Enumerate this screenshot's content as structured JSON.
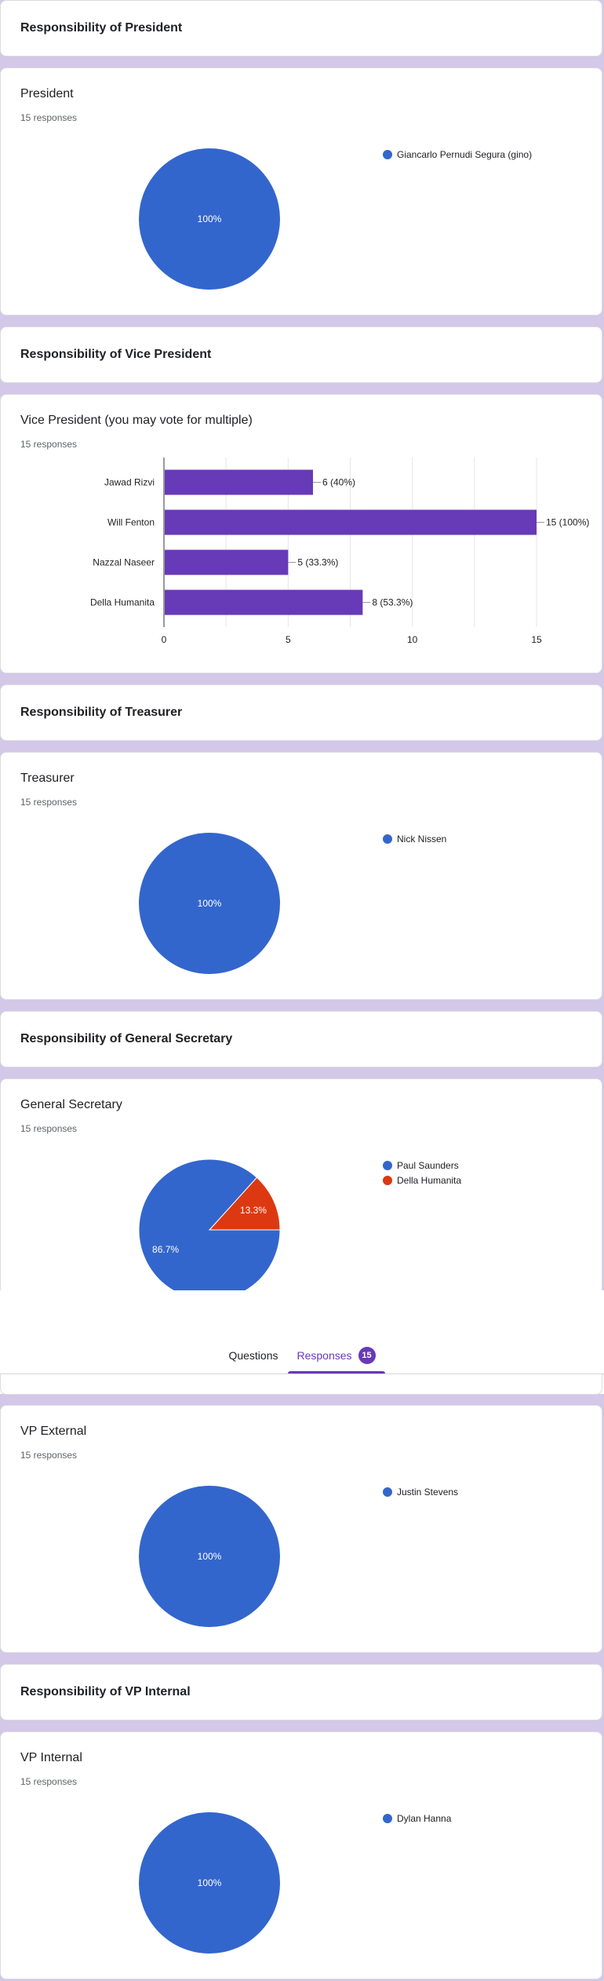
{
  "sections": [
    {
      "title": "Responsibility of President"
    },
    {
      "title": "Responsibility of Vice President"
    },
    {
      "title": "Responsibility of Treasurer"
    },
    {
      "title": "Responsibility of General Secretary"
    },
    {
      "title": "Responsibility of VP Internal"
    }
  ],
  "questions": {
    "president": {
      "title": "President",
      "responses": "15 responses"
    },
    "vice_president": {
      "title": "Vice President (you may vote for multiple)",
      "responses": "15 responses"
    },
    "treasurer": {
      "title": "Treasurer",
      "responses": "15 responses"
    },
    "general_secretary": {
      "title": "General Secretary",
      "responses": "15 responses"
    },
    "vp_external": {
      "title": "VP External",
      "responses": "15 responses"
    },
    "vp_internal": {
      "title": "VP Internal",
      "responses": "15 responses"
    }
  },
  "tabs": {
    "questions": "Questions",
    "responses": "Responses",
    "badge": "15"
  },
  "colors": {
    "blue": "#3366cc",
    "red": "#dc3912",
    "purple": "#673ab7",
    "bar": "#673ab7"
  },
  "chart_data": [
    {
      "type": "pie",
      "labels": [
        "Giancarlo Pernudi Segura (gino)"
      ],
      "values": [
        100
      ],
      "slice_labels": [
        "100%"
      ]
    },
    {
      "type": "bar",
      "orientation": "horizontal",
      "categories": [
        "Jawad Rizvi",
        "Will Fenton",
        "Nazzal Naseer",
        "Della Humanita"
      ],
      "values": [
        6,
        15,
        5,
        8
      ],
      "data_labels": [
        "6 (40%)",
        "15 (100%)",
        "5 (33.3%)",
        "8 (53.3%)"
      ],
      "xlim": [
        0,
        15
      ],
      "xticks": [
        "0",
        "5",
        "10",
        "15"
      ],
      "grid": true
    },
    {
      "type": "pie",
      "labels": [
        "Nick Nissen"
      ],
      "values": [
        100
      ],
      "slice_labels": [
        "100%"
      ]
    },
    {
      "type": "pie",
      "labels": [
        "Paul Saunders",
        "Della Humanita"
      ],
      "values": [
        86.7,
        13.3
      ],
      "slice_labels": [
        "86.7%",
        "13.3%"
      ]
    },
    {
      "type": "pie",
      "labels": [
        "Justin Stevens"
      ],
      "values": [
        100
      ],
      "slice_labels": [
        "100%"
      ]
    },
    {
      "type": "pie",
      "labels": [
        "Dylan Hanna"
      ],
      "values": [
        100
      ],
      "slice_labels": [
        "100%"
      ]
    }
  ]
}
